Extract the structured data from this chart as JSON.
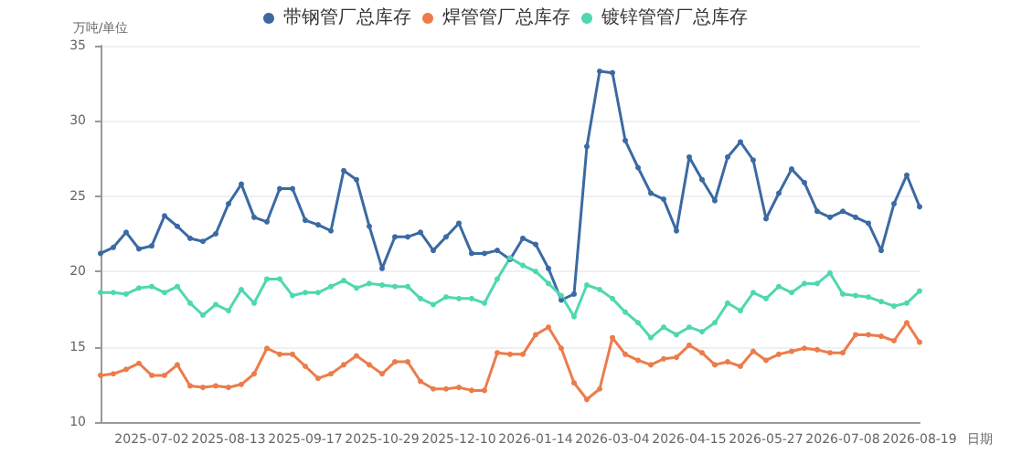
{
  "chart_data": {
    "type": "line",
    "ylabel": "万吨/单位",
    "xlabel": "日期",
    "categories": [
      null,
      null,
      null,
      null,
      "2025-07-02",
      null,
      null,
      null,
      null,
      null,
      "2025-08-13",
      null,
      null,
      null,
      null,
      null,
      "2025-09-17",
      null,
      null,
      null,
      null,
      null,
      "2025-10-29",
      null,
      null,
      null,
      null,
      null,
      "2025-12-10",
      null,
      null,
      null,
      null,
      null,
      "2026-01-14",
      null,
      null,
      null,
      null,
      null,
      "2026-03-04",
      null,
      null,
      null,
      null,
      null,
      "2026-04-15",
      null,
      null,
      null,
      null,
      null,
      "2026-05-27",
      null,
      null,
      null,
      null,
      null,
      "2026-07-08",
      null,
      null,
      null,
      null,
      null,
      "2026-08-19"
    ],
    "series": [
      {
        "name": "带钢管厂总库存",
        "color": "#3b6aa3",
        "values": [
          21.2,
          21.6,
          22.6,
          21.5,
          21.7,
          23.7,
          23.0,
          22.2,
          22.0,
          22.5,
          24.5,
          25.8,
          23.6,
          23.3,
          25.5,
          25.5,
          23.4,
          23.1,
          22.7,
          26.7,
          26.1,
          23.0,
          20.2,
          22.3,
          22.3,
          22.6,
          21.4,
          22.3,
          23.2,
          21.2,
          21.2,
          21.4,
          20.8,
          22.2,
          21.8,
          20.2,
          18.1,
          18.5,
          28.3,
          33.3,
          33.2,
          28.7,
          26.9,
          25.2,
          24.8,
          22.7,
          27.6,
          26.1,
          24.7,
          27.6,
          28.6,
          27.4,
          23.5,
          25.2,
          26.8,
          25.9,
          24.0,
          23.6,
          24.0,
          23.6,
          23.2,
          21.4,
          24.5,
          26.4,
          24.3
        ]
      },
      {
        "name": "焊管管厂总库存",
        "color": "#ec7c4b",
        "values": [
          13.1,
          13.2,
          13.5,
          13.9,
          13.1,
          13.1,
          13.8,
          12.4,
          12.3,
          12.4,
          12.3,
          12.5,
          13.2,
          14.9,
          14.5,
          14.5,
          13.7,
          12.9,
          13.2,
          13.8,
          14.4,
          13.8,
          13.2,
          14.0,
          14.0,
          12.7,
          12.2,
          12.2,
          12.3,
          12.1,
          12.1,
          14.6,
          14.5,
          14.5,
          15.8,
          16.3,
          14.9,
          12.6,
          11.5,
          12.2,
          15.6,
          14.5,
          14.1,
          13.8,
          14.2,
          14.3,
          15.1,
          14.6,
          13.8,
          14.0,
          13.7,
          14.7,
          14.1,
          14.5,
          14.7,
          14.9,
          14.8,
          14.6,
          14.6,
          15.8,
          15.8,
          15.7,
          15.4,
          16.6,
          15.3
        ]
      },
      {
        "name": "镀锌管管厂总库存",
        "color": "#4fd8b0",
        "values": [
          18.6,
          18.6,
          18.5,
          18.9,
          19.0,
          18.6,
          19.0,
          17.9,
          17.1,
          17.8,
          17.4,
          18.8,
          17.9,
          19.5,
          19.5,
          18.4,
          18.6,
          18.6,
          19.0,
          19.4,
          18.9,
          19.2,
          19.1,
          19.0,
          19.0,
          18.2,
          17.8,
          18.3,
          18.2,
          18.2,
          17.9,
          19.5,
          20.9,
          20.4,
          20.0,
          19.2,
          18.4,
          17.0,
          19.1,
          18.8,
          18.2,
          17.3,
          16.6,
          15.6,
          16.3,
          15.8,
          16.3,
          16.0,
          16.6,
          17.9,
          17.4,
          18.6,
          18.2,
          19.0,
          18.6,
          19.2,
          19.2,
          19.9,
          18.5,
          18.4,
          18.3,
          18.0,
          17.7,
          17.9,
          18.7
        ]
      }
    ],
    "ylim": [
      10,
      35
    ],
    "yticks": [
      10,
      15,
      20,
      25,
      30,
      35
    ],
    "grid": "y",
    "legend": "top",
    "marker": "circle",
    "line_style": "solid"
  }
}
